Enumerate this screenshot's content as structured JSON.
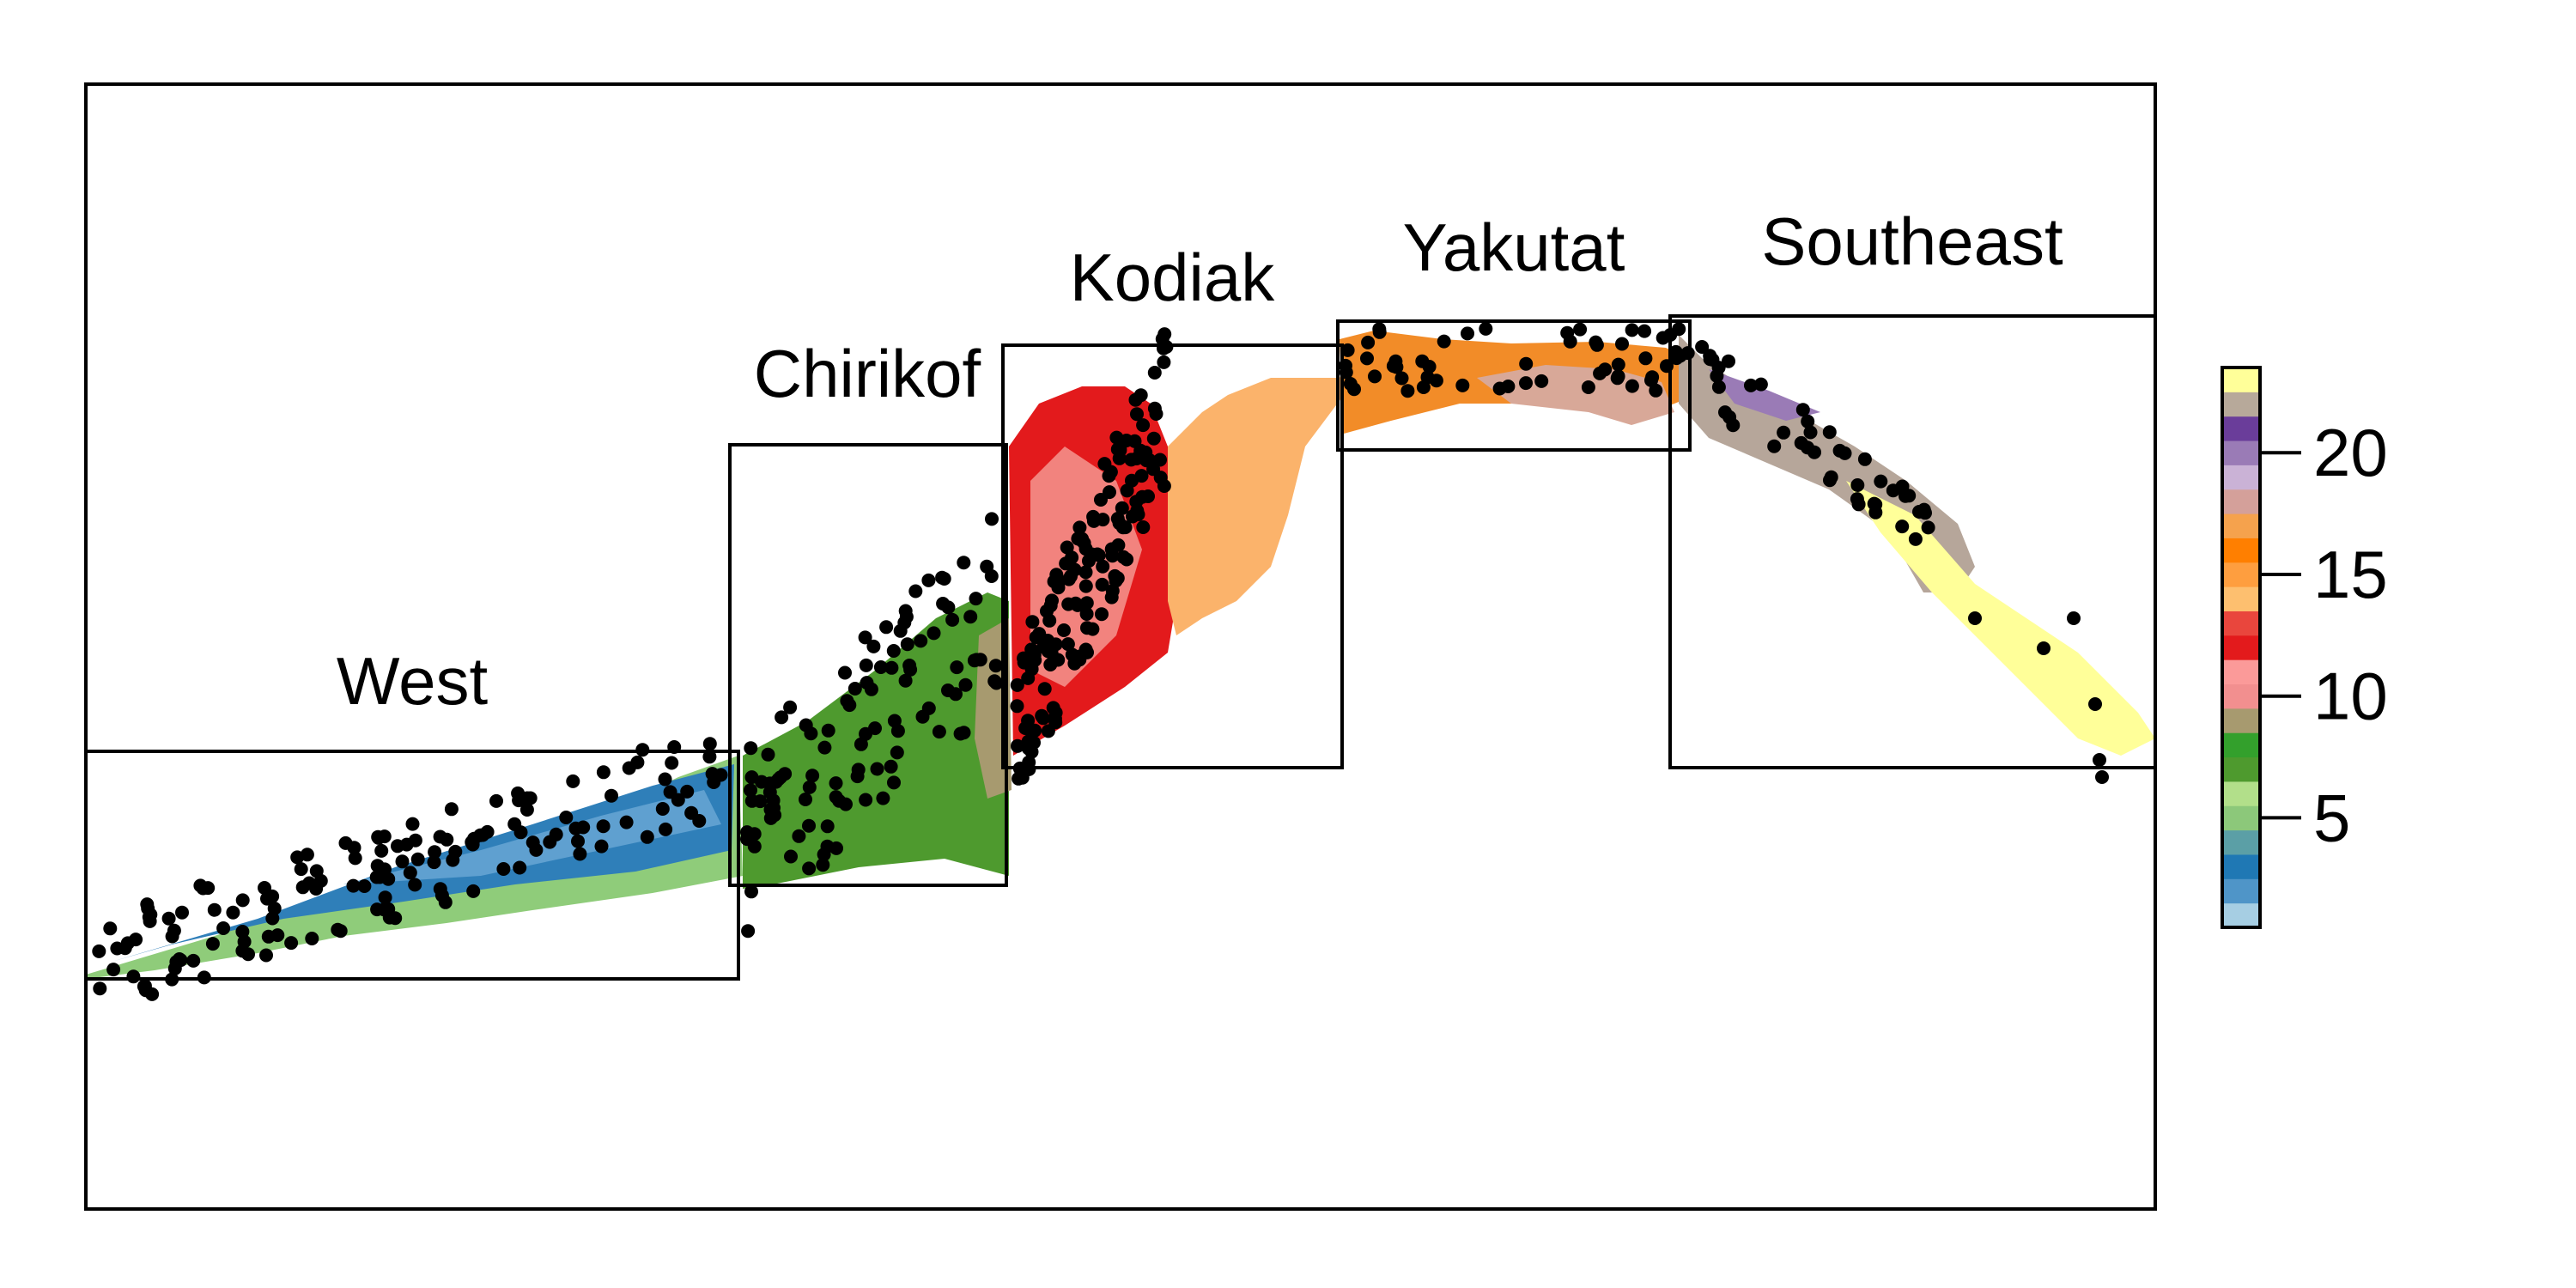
{
  "chart_data": {
    "type": "heatmap",
    "title": "",
    "xlabel": "",
    "ylabel": "",
    "regions": [
      {
        "name": "West"
      },
      {
        "name": "Chirikof"
      },
      {
        "name": "Kodiak"
      },
      {
        "name": "Yakutat"
      },
      {
        "name": "Southeast"
      }
    ],
    "colorbar": {
      "min": 1,
      "max": 23,
      "ticks": [
        5,
        10,
        15,
        20
      ],
      "colors": [
        "#a6cee3",
        "#4f95c8",
        "#1f78b4",
        "#5b9fa6",
        "#8cc87a",
        "#b2df8a",
        "#4e9a2e",
        "#33a02c",
        "#a79a6f",
        "#f28f8f",
        "#fb9a99",
        "#e31a1c",
        "#e9463d",
        "#fdbf6f",
        "#fe9e3f",
        "#ff7f00",
        "#f5a24d",
        "#d4a09a",
        "#cab2d6",
        "#9a7bb6",
        "#6a3d9a",
        "#b7a99a",
        "#ffff99"
      ]
    },
    "points_description": "black survey station points overlaid on regions"
  }
}
